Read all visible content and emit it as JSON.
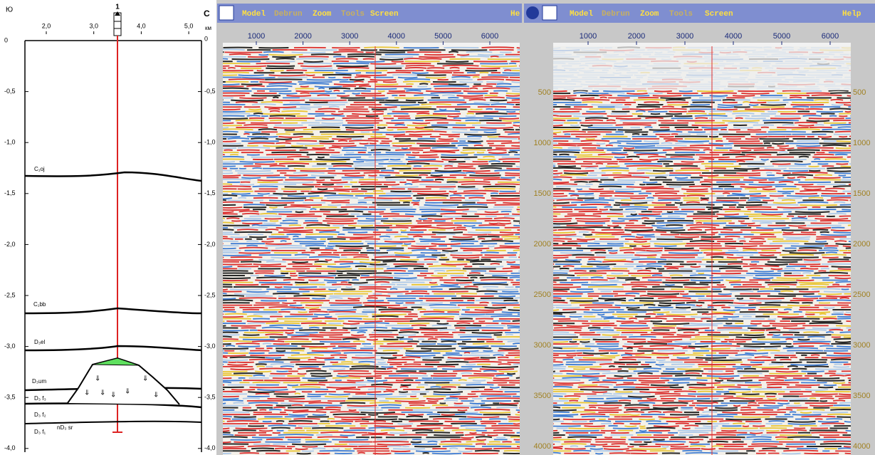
{
  "section": {
    "south": "Ю",
    "north": "С",
    "well": "1",
    "unit": "км",
    "x_ticks": [
      "2,0",
      "3,0",
      "4,0",
      "5,0"
    ],
    "left_depth_ticks": [
      "0",
      "-0,5",
      "-1,0",
      "-1,5",
      "-2,0",
      "-2,5",
      "-3,0",
      "-3,5",
      "-4,0"
    ],
    "right_depth_ticks": [
      "0",
      "-0,5",
      "-1,0",
      "-1,5",
      "-2,0",
      "-2,5",
      "-3,0",
      "-3,5",
      "-4,0"
    ],
    "horizons": [
      "C₁oj",
      "C₁bb",
      "D₃el",
      "D₃um",
      "D₃ f₃",
      "D₃ f₂",
      "D₃ f₁",
      "nD₃ sr"
    ]
  },
  "panel_left": {
    "menu": [
      "Model",
      "Debrun",
      "Zoom",
      "Tools",
      "Screen",
      "He"
    ],
    "x_ticks": [
      "1000",
      "2000",
      "3000",
      "4000",
      "5000",
      "6000"
    ]
  },
  "panel_right": {
    "menu": [
      "Model",
      "Debrun",
      "Zoom",
      "Tools",
      "Screen",
      "Help"
    ],
    "x_ticks": [
      "1000",
      "2000",
      "3000",
      "4000",
      "5000",
      "6000"
    ],
    "y_ticks": [
      "500",
      "1000",
      "1500",
      "2000",
      "2500",
      "3000",
      "3500",
      "4000"
    ]
  }
}
